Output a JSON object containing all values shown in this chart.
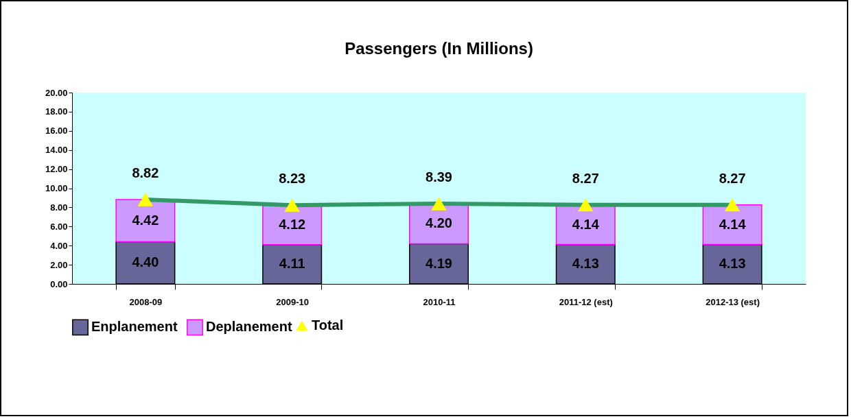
{
  "chart_data": {
    "type": "bar",
    "title": "Passengers (In Millions)",
    "stacked": true,
    "categories": [
      "2008-09",
      "2009-10",
      "2010-11",
      "2011-12 (est)",
      "2012-13 (est)"
    ],
    "series": [
      {
        "name": "Enplanement",
        "color": "#666699",
        "values": [
          4.4,
          4.11,
          4.19,
          4.13,
          4.13
        ],
        "value_labels": [
          "4.40",
          "4.11",
          "4.19",
          "4.13",
          "4.13"
        ]
      },
      {
        "name": "Deplanement",
        "color": "#cc99ff",
        "values": [
          4.42,
          4.12,
          4.2,
          4.14,
          4.14
        ],
        "value_labels": [
          "4.42",
          "4.12",
          "4.20",
          "4.14",
          "4.14"
        ]
      },
      {
        "name": "Total",
        "type": "line",
        "color": "#339966",
        "marker": "triangle",
        "values": [
          8.82,
          8.23,
          8.39,
          8.27,
          8.27
        ],
        "value_labels": [
          "8.82",
          "8.23",
          "8.39",
          "8.27",
          "8.27"
        ]
      }
    ],
    "ylim": [
      0,
      20
    ],
    "yticks": [
      {
        "value": 0,
        "label": "0.00"
      },
      {
        "value": 2,
        "label": "2.00"
      },
      {
        "value": 4,
        "label": "4.00"
      },
      {
        "value": 6,
        "label": "6.00"
      },
      {
        "value": 8,
        "label": "8.00"
      },
      {
        "value": 10,
        "label": "10.00"
      },
      {
        "value": 12,
        "label": "12.00"
      },
      {
        "value": 14,
        "label": "14.00"
      },
      {
        "value": 16,
        "label": "16.00"
      },
      {
        "value": 18,
        "label": "18.00"
      },
      {
        "value": 20,
        "label": "20.00"
      }
    ],
    "grid": false,
    "legend": "bottom left"
  }
}
